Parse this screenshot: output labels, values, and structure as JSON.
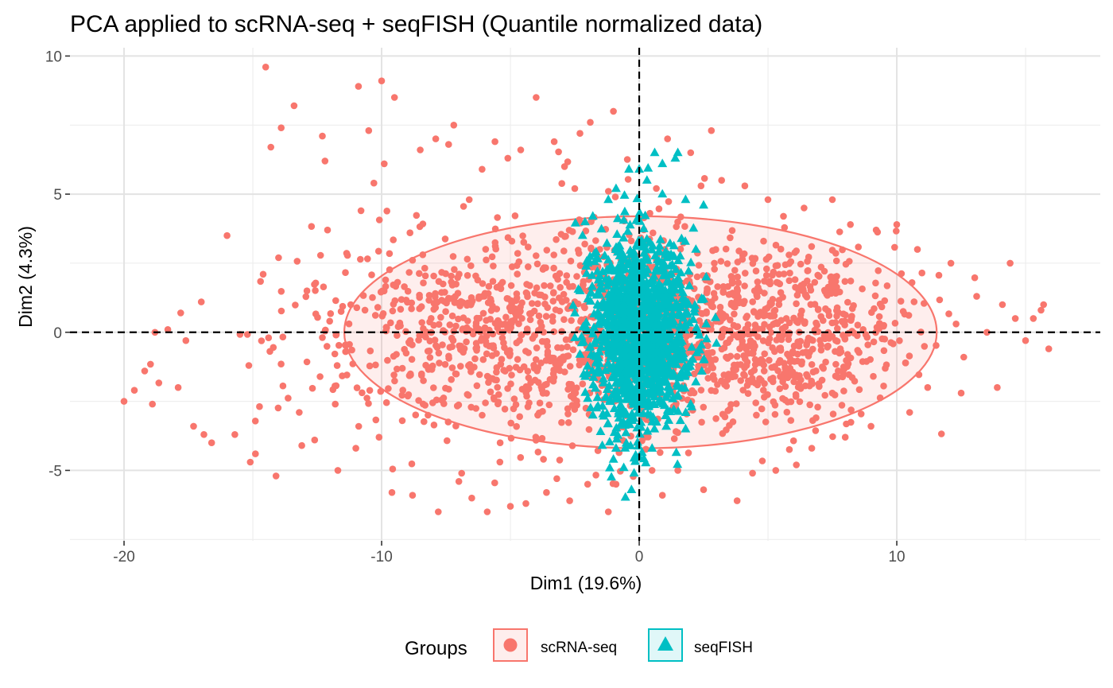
{
  "chart_data": {
    "type": "scatter",
    "title": "PCA applied to scRNA-seq + seqFISH (Quantile normalized data)",
    "xlabel": "Dim1 (19.6%)",
    "ylabel": "Dim2 (4.3%)",
    "xlim": [
      -22.1,
      17.9
    ],
    "ylim": [
      -7.55,
      10.3
    ],
    "x_ticks": [
      -20,
      -10,
      0,
      10
    ],
    "x_tick_labels": [
      "-20",
      "-10",
      "0",
      "10"
    ],
    "y_ticks": [
      -5,
      0,
      5,
      10
    ],
    "y_tick_labels": [
      "-5",
      "0",
      "5",
      "10"
    ],
    "grid": true,
    "reference_lines": {
      "x": 0,
      "y": 0,
      "style": "dashed",
      "color": "#000000"
    },
    "legend": {
      "title": "Groups",
      "position": "bottom",
      "entries": [
        "scRNA-seq",
        "seqFISH"
      ]
    },
    "ellipse": {
      "group": "scRNA-seq",
      "center": [
        0.05,
        0.0
      ],
      "semi_axis_x": 11.5,
      "semi_axis_y": 4.2,
      "stroke": "#F8766D",
      "fill": "#F8766D"
    },
    "series": [
      {
        "name": "scRNA-seq",
        "marker": "circle",
        "color": "#F8766D",
        "n_points": 1950,
        "points": [
          [
            -20.0,
            -2.5
          ],
          [
            -19.6,
            -2.1
          ],
          [
            -19.2,
            -1.4
          ],
          [
            -18.9,
            -2.6
          ],
          [
            -18.8,
            0.0
          ],
          [
            -18.3,
            0.1
          ],
          [
            -17.9,
            -2.0
          ],
          [
            -17.8,
            0.7
          ],
          [
            -17.6,
            -0.3
          ],
          [
            -17.3,
            -3.4
          ],
          [
            -17.0,
            1.1
          ],
          [
            -16.9,
            -3.7
          ],
          [
            -16.6,
            -4.0
          ],
          [
            -16.0,
            3.5
          ],
          [
            -15.7,
            -3.7
          ],
          [
            -15.1,
            -4.7
          ],
          [
            -14.9,
            -4.4
          ],
          [
            -14.6,
            2.1
          ],
          [
            -14.5,
            9.6
          ],
          [
            -14.3,
            6.7
          ],
          [
            -14.1,
            -5.2
          ],
          [
            -14.0,
            2.7
          ],
          [
            -13.9,
            7.4
          ],
          [
            -13.4,
            8.2
          ],
          [
            -13.2,
            -2.9
          ],
          [
            -13.1,
            -4.1
          ],
          [
            -12.9,
            1.5
          ],
          [
            -12.6,
            -3.9
          ],
          [
            -12.3,
            7.1
          ],
          [
            -12.2,
            6.2
          ],
          [
            -12.1,
            3.7
          ],
          [
            -11.8,
            -2.6
          ],
          [
            -11.7,
            -5.0
          ],
          [
            -11.4,
            -0.7
          ],
          [
            -11.2,
            1.0
          ],
          [
            -11.0,
            -4.2
          ],
          [
            -10.9,
            8.9
          ],
          [
            -10.8,
            4.4
          ],
          [
            -10.5,
            7.3
          ],
          [
            -10.3,
            5.4
          ],
          [
            -10.1,
            -3.8
          ],
          [
            -10.0,
            9.1
          ],
          [
            -9.9,
            6.1
          ],
          [
            -9.6,
            -5.8
          ],
          [
            -9.5,
            8.5
          ],
          [
            -9.2,
            -3.2
          ],
          [
            -8.9,
            3.6
          ],
          [
            -8.8,
            -5.9
          ],
          [
            -8.5,
            6.6
          ],
          [
            -8.2,
            -3.0
          ],
          [
            -7.9,
            7.0
          ],
          [
            -7.8,
            -6.5
          ],
          [
            -7.4,
            6.8
          ],
          [
            -7.2,
            7.5
          ],
          [
            -7.0,
            -5.4
          ],
          [
            -6.6,
            4.8
          ],
          [
            -6.5,
            -6.0
          ],
          [
            -6.1,
            5.9
          ],
          [
            -5.9,
            -6.5
          ],
          [
            -5.6,
            6.9
          ],
          [
            -5.4,
            -4.0
          ],
          [
            -5.1,
            6.3
          ],
          [
            -5.0,
            -6.3
          ],
          [
            -4.6,
            6.6
          ],
          [
            -4.4,
            -6.2
          ],
          [
            -4.0,
            8.5
          ],
          [
            -3.6,
            -5.8
          ],
          [
            -3.3,
            6.9
          ],
          [
            -3.2,
            -5.3
          ],
          [
            -2.9,
            6.0
          ],
          [
            -2.7,
            -6.1
          ],
          [
            -2.5,
            5.2
          ],
          [
            -2.3,
            7.2
          ],
          [
            -2.0,
            -5.5
          ],
          [
            -1.9,
            7.6
          ],
          [
            -1.2,
            -6.5
          ],
          [
            -1.0,
            8.0
          ],
          [
            -0.9,
            -5.5
          ],
          [
            0.5,
            -5.0
          ],
          [
            0.9,
            -5.9
          ],
          [
            1.1,
            7.0
          ],
          [
            1.5,
            -5.0
          ],
          [
            2.0,
            6.5
          ],
          [
            2.4,
            5.3
          ],
          [
            2.5,
            -5.7
          ],
          [
            2.8,
            7.3
          ],
          [
            3.2,
            5.5
          ],
          [
            3.8,
            -6.1
          ],
          [
            4.1,
            5.3
          ],
          [
            4.4,
            -5.1
          ],
          [
            5.0,
            4.8
          ],
          [
            5.3,
            -5.0
          ],
          [
            5.6,
            4.2
          ],
          [
            6.1,
            -4.8
          ],
          [
            6.4,
            4.5
          ],
          [
            6.7,
            -4.2
          ],
          [
            7.5,
            4.8
          ],
          [
            8.0,
            -3.8
          ],
          [
            8.2,
            3.9
          ],
          [
            9.0,
            -3.4
          ],
          [
            9.2,
            3.7
          ],
          [
            10.0,
            3.9
          ],
          [
            10.5,
            -2.9
          ],
          [
            10.8,
            3.0
          ],
          [
            11.2,
            -2.0
          ],
          [
            12.1,
            2.5
          ],
          [
            12.3,
            0.3
          ],
          [
            12.5,
            -2.2
          ],
          [
            12.6,
            -0.9
          ],
          [
            13.1,
            1.3
          ],
          [
            13.5,
            0.0
          ],
          [
            13.9,
            -2.0
          ],
          [
            14.1,
            1.0
          ],
          [
            14.4,
            2.5
          ],
          [
            14.6,
            0.5
          ],
          [
            15.0,
            -0.3
          ],
          [
            15.3,
            0.5
          ],
          [
            15.7,
            1.0
          ],
          [
            15.9,
            -0.6
          ],
          [
            15.6,
            0.8
          ]
        ]
      },
      {
        "name": "seqFISH",
        "marker": "triangle",
        "color": "#00BFC4",
        "n_points": 1300,
        "points": [
          [
            0.6,
            6.5
          ],
          [
            1.5,
            6.5
          ],
          [
            1.4,
            6.3
          ],
          [
            0.9,
            6.1
          ],
          [
            0.0,
            5.9
          ],
          [
            -0.4,
            5.9
          ],
          [
            0.3,
            5.5
          ],
          [
            -0.9,
            5.2
          ],
          [
            0.9,
            5.0
          ],
          [
            -1.2,
            4.8
          ],
          [
            1.8,
            4.8
          ],
          [
            2.5,
            4.6
          ],
          [
            -1.8,
            4.2
          ],
          [
            -2.2,
            3.5
          ],
          [
            2.2,
            3.0
          ],
          [
            -2.0,
            2.5
          ],
          [
            2.6,
            2.0
          ],
          [
            -2.3,
            1.5
          ],
          [
            2.5,
            1.2
          ],
          [
            -2.5,
            0.7
          ],
          [
            2.6,
            0.3
          ],
          [
            -2.5,
            -0.2
          ],
          [
            3.0,
            -0.4
          ],
          [
            -2.3,
            -0.8
          ],
          [
            2.5,
            -1.0
          ],
          [
            -2.1,
            -1.6
          ],
          [
            2.2,
            -1.8
          ],
          [
            -2.0,
            -2.4
          ],
          [
            2.0,
            -2.6
          ],
          [
            -1.8,
            -3.0
          ],
          [
            1.6,
            -3.2
          ],
          [
            -1.5,
            -3.6
          ],
          [
            1.8,
            -3.5
          ],
          [
            -0.9,
            -4.2
          ],
          [
            0.5,
            -4.2
          ],
          [
            -1.0,
            -4.6
          ],
          [
            0.0,
            -4.5
          ],
          [
            -0.6,
            -4.9
          ],
          [
            -0.2,
            -5.1
          ],
          [
            -0.3,
            -5.7
          ]
        ]
      }
    ]
  }
}
